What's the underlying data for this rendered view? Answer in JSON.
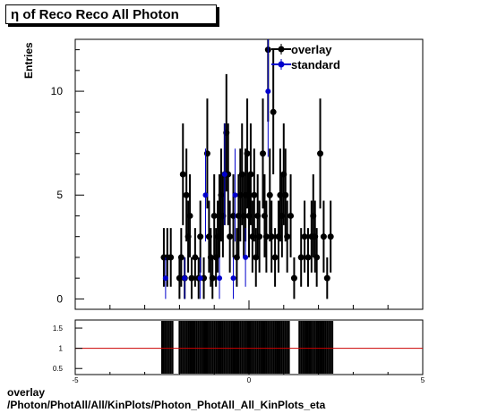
{
  "title": "η of Reco Reco All Photon",
  "footer": {
    "line1": "overlay",
    "line2": "/Photon/PhotAll/All/KinPlots/Photon_PhotAll_All_KinPlots_eta"
  },
  "chart_data": [
    {
      "type": "scatter",
      "ylabel": "Entries",
      "xlim": [
        -5,
        5
      ],
      "ylim": [
        -0.5,
        12.5
      ],
      "x_ticks": [
        "-5",
        "0",
        "5"
      ],
      "y_ticks": [
        "0",
        "5",
        "10"
      ],
      "legend_position": "top-right",
      "series": [
        {
          "name": "overlay",
          "color": "#000000",
          "points": [
            [
              -2.45,
              2
            ],
            [
              -2.35,
              2
            ],
            [
              -2.25,
              2
            ],
            [
              -2.0,
              1
            ],
            [
              -1.95,
              2
            ],
            [
              -1.9,
              6
            ],
            [
              -1.85,
              1
            ],
            [
              -1.8,
              5
            ],
            [
              -1.75,
              3
            ],
            [
              -1.7,
              4
            ],
            [
              -1.65,
              1
            ],
            [
              -1.55,
              2
            ],
            [
              -1.45,
              1
            ],
            [
              -1.4,
              3
            ],
            [
              -1.3,
              1
            ],
            [
              -1.2,
              7
            ],
            [
              -1.15,
              3
            ],
            [
              -1.1,
              2
            ],
            [
              -1.05,
              1
            ],
            [
              -1.0,
              4
            ],
            [
              -0.95,
              2
            ],
            [
              -0.9,
              3
            ],
            [
              -0.85,
              4
            ],
            [
              -0.8,
              5
            ],
            [
              -0.75,
              4
            ],
            [
              -0.7,
              6
            ],
            [
              -0.65,
              8
            ],
            [
              -0.6,
              6
            ],
            [
              -0.55,
              3
            ],
            [
              -0.45,
              4
            ],
            [
              -0.35,
              2
            ],
            [
              -0.3,
              4
            ],
            [
              -0.25,
              5
            ],
            [
              -0.2,
              6
            ],
            [
              -0.15,
              4
            ],
            [
              -0.1,
              5
            ],
            [
              -0.05,
              7
            ],
            [
              0.0,
              4
            ],
            [
              0.05,
              6
            ],
            [
              0.1,
              3
            ],
            [
              0.15,
              5
            ],
            [
              0.2,
              2
            ],
            [
              0.25,
              4
            ],
            [
              0.3,
              3
            ],
            [
              0.4,
              7
            ],
            [
              0.45,
              4
            ],
            [
              0.5,
              3
            ],
            [
              0.55,
              12
            ],
            [
              0.6,
              5
            ],
            [
              0.65,
              3
            ],
            [
              0.7,
              9
            ],
            [
              0.75,
              2
            ],
            [
              0.85,
              3
            ],
            [
              0.9,
              5
            ],
            [
              0.95,
              4
            ],
            [
              1.0,
              6
            ],
            [
              1.05,
              5
            ],
            [
              1.1,
              3
            ],
            [
              1.2,
              4
            ],
            [
              1.3,
              1
            ],
            [
              1.5,
              2
            ],
            [
              1.6,
              3
            ],
            [
              1.7,
              2
            ],
            [
              1.8,
              3
            ],
            [
              1.85,
              4
            ],
            [
              1.9,
              3
            ],
            [
              1.95,
              2
            ],
            [
              2.05,
              7
            ],
            [
              2.15,
              3
            ],
            [
              2.25,
              1
            ],
            [
              2.35,
              3
            ]
          ]
        },
        {
          "name": "standard",
          "color": "#0000cc",
          "points": [
            [
              -2.4,
              1
            ],
            [
              -1.85,
              1
            ],
            [
              -1.4,
              1
            ],
            [
              -1.25,
              5
            ],
            [
              -0.85,
              1
            ],
            [
              -0.7,
              6
            ],
            [
              -0.45,
              1
            ],
            [
              -0.4,
              5
            ],
            [
              -0.1,
              2
            ],
            [
              0.55,
              10
            ]
          ]
        }
      ]
    },
    {
      "type": "scatter",
      "xlim": [
        -5,
        5
      ],
      "ylim": [
        0.35,
        1.7
      ],
      "x_ticks": [
        "-5",
        "0",
        "5"
      ],
      "y_ticks": [
        "0.5",
        "1",
        "1.5"
      ],
      "reference_line": {
        "y": 1,
        "color": "#cc0000"
      },
      "ratio_columns": [
        [
          -2.5,
          -2.2
        ],
        [
          -2.0,
          -1.6
        ],
        [
          -1.6,
          -1.3
        ],
        [
          -1.25,
          -0.35
        ],
        [
          -0.35,
          0.25
        ],
        [
          0.3,
          1.15
        ],
        [
          1.45,
          1.75
        ],
        [
          1.75,
          2.0
        ],
        [
          2.0,
          2.4
        ]
      ]
    }
  ]
}
